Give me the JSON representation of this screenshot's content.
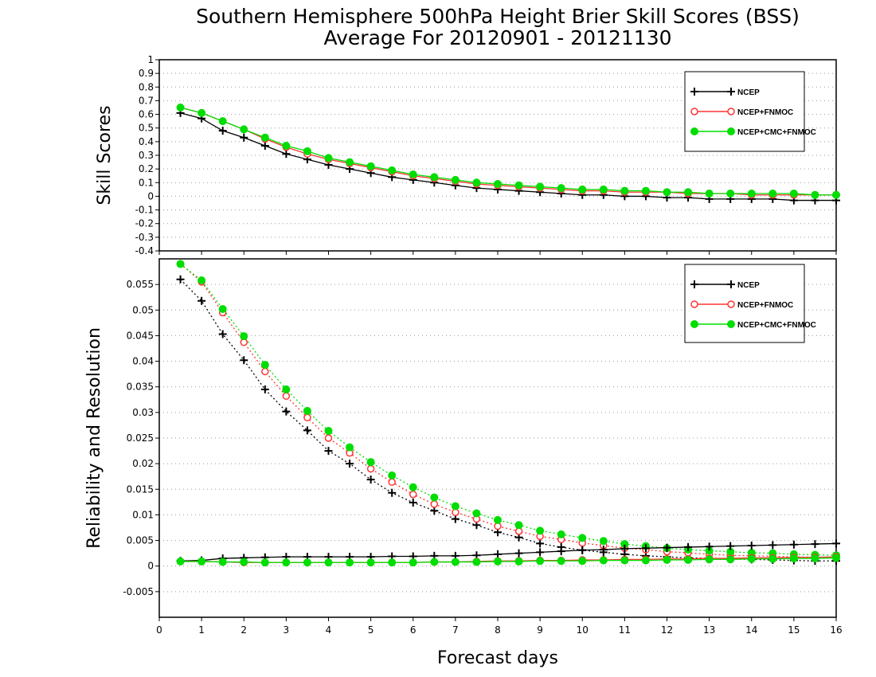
{
  "title_line1": "Southern Hemisphere 500hPa Height Brier Skill Scores (BSS)",
  "title_line2": "Average For 20120901 - 20121130",
  "xlabel": "Forecast days",
  "colors": {
    "NCEP": "#000000",
    "NCEP+FNMOC": "#ff3333",
    "NCEP+CMC+FNMOC": "#00dd00"
  },
  "chart_data": [
    {
      "type": "line",
      "ylabel": "Skill Scores",
      "xlim": [
        0,
        16
      ],
      "ylim": [
        -0.4,
        1
      ],
      "xticks": [
        "0",
        "1",
        "2",
        "3",
        "4",
        "5",
        "6",
        "7",
        "8",
        "9",
        "10",
        "11",
        "12",
        "13",
        "14",
        "15",
        "16"
      ],
      "yticks": [
        "-0.4",
        "-0.3",
        "-0.2",
        "-0.1",
        "0",
        "0.1",
        "0.2",
        "0.3",
        "0.4",
        "0.5",
        "0.6",
        "0.7",
        "0.8",
        "0.9",
        "1"
      ],
      "grid": true,
      "legend": "top-right",
      "x": [
        0.5,
        1,
        1.5,
        2,
        2.5,
        3,
        3.5,
        4,
        4.5,
        5,
        5.5,
        6,
        6.5,
        7,
        7.5,
        8,
        8.5,
        9,
        9.5,
        10,
        10.5,
        11,
        11.5,
        12,
        12.5,
        13,
        13.5,
        14,
        14.5,
        15,
        15.5,
        16
      ],
      "series": [
        {
          "name": "NCEP",
          "marker": "plus",
          "style": "solid",
          "values": [
            0.61,
            0.57,
            0.48,
            0.43,
            0.37,
            0.31,
            0.27,
            0.23,
            0.2,
            0.17,
            0.14,
            0.12,
            0.1,
            0.08,
            0.06,
            0.05,
            0.04,
            0.03,
            0.02,
            0.01,
            0.01,
            0.0,
            0.0,
            -0.01,
            -0.01,
            -0.02,
            -0.02,
            -0.02,
            -0.02,
            -0.03,
            -0.03,
            -0.03
          ]
        },
        {
          "name": "NCEP+FNMOC",
          "marker": "circle-open",
          "style": "solid",
          "values": [
            0.65,
            0.61,
            0.55,
            0.49,
            0.42,
            0.36,
            0.31,
            0.27,
            0.24,
            0.21,
            0.18,
            0.15,
            0.13,
            0.11,
            0.09,
            0.08,
            0.07,
            0.06,
            0.05,
            0.04,
            0.04,
            0.03,
            0.03,
            0.03,
            0.02,
            0.02,
            0.02,
            0.01,
            0.01,
            0.01,
            0.01,
            0.01
          ]
        },
        {
          "name": "NCEP+CMC+FNMOC",
          "marker": "circle-filled",
          "style": "solid",
          "values": [
            0.65,
            0.61,
            0.55,
            0.49,
            0.43,
            0.37,
            0.33,
            0.28,
            0.25,
            0.22,
            0.19,
            0.16,
            0.14,
            0.12,
            0.1,
            0.09,
            0.08,
            0.07,
            0.06,
            0.05,
            0.05,
            0.04,
            0.04,
            0.03,
            0.03,
            0.02,
            0.02,
            0.02,
            0.02,
            0.02,
            0.01,
            0.01
          ]
        }
      ]
    },
    {
      "type": "line",
      "ylabel": "Reliability and Resolution",
      "xlim": [
        0,
        16
      ],
      "ylim": [
        -0.01,
        0.06
      ],
      "xticks": [
        "0",
        "1",
        "2",
        "3",
        "4",
        "5",
        "6",
        "7",
        "8",
        "9",
        "10",
        "11",
        "12",
        "13",
        "14",
        "15",
        "16"
      ],
      "yticks": [
        "-0.005",
        "0",
        "0.005",
        "0.01",
        "0.015",
        "0.02",
        "0.025",
        "0.03",
        "0.035",
        "0.04",
        "0.045",
        "0.05",
        "0.055"
      ],
      "grid": true,
      "legend": "top-right",
      "x": [
        0.5,
        1,
        1.5,
        2,
        2.5,
        3,
        3.5,
        4,
        4.5,
        5,
        5.5,
        6,
        6.5,
        7,
        7.5,
        8,
        8.5,
        9,
        9.5,
        10,
        10.5,
        11,
        11.5,
        12,
        12.5,
        13,
        13.5,
        14,
        14.5,
        15,
        15.5,
        16
      ],
      "series": [
        {
          "name": "NCEP",
          "component": "resolution",
          "marker": "plus",
          "style": "dotted",
          "values": [
            0.056,
            0.0518,
            0.0453,
            0.0402,
            0.0345,
            0.0302,
            0.0265,
            0.0225,
            0.02,
            0.0169,
            0.0143,
            0.0124,
            0.0108,
            0.0092,
            0.008,
            0.0066,
            0.0056,
            0.0044,
            0.0037,
            0.0031,
            0.0027,
            0.0023,
            0.002,
            0.0018,
            0.0016,
            0.0015,
            0.0014,
            0.0013,
            0.0012,
            0.0011,
            0.001,
            0.001
          ]
        },
        {
          "name": "NCEP+FNMOC",
          "component": "resolution",
          "marker": "circle-open",
          "style": "dotted",
          "values": [
            0.059,
            0.0555,
            0.0495,
            0.0437,
            0.038,
            0.0332,
            0.029,
            0.025,
            0.0221,
            0.019,
            0.0164,
            0.014,
            0.0121,
            0.0105,
            0.0092,
            0.0078,
            0.0068,
            0.0058,
            0.0052,
            0.0045,
            0.004,
            0.0035,
            0.0032,
            0.0028,
            0.0026,
            0.0023,
            0.0021,
            0.002,
            0.0019,
            0.0018,
            0.0017,
            0.0017
          ]
        },
        {
          "name": "NCEP+CMC+FNMOC",
          "component": "resolution",
          "marker": "circle-filled",
          "style": "dotted",
          "values": [
            0.059,
            0.0558,
            0.0502,
            0.0449,
            0.0393,
            0.0345,
            0.0303,
            0.0264,
            0.0232,
            0.0203,
            0.0177,
            0.0154,
            0.0134,
            0.0117,
            0.0103,
            0.009,
            0.008,
            0.0069,
            0.0062,
            0.0055,
            0.0049,
            0.0043,
            0.0039,
            0.0035,
            0.0032,
            0.003,
            0.0028,
            0.0026,
            0.0025,
            0.0023,
            0.0022,
            0.0021
          ]
        },
        {
          "name": "NCEP",
          "component": "reliability",
          "marker": "plus",
          "style": "solid",
          "values": [
            0.001,
            0.0011,
            0.0015,
            0.0016,
            0.0017,
            0.0018,
            0.0018,
            0.0018,
            0.0018,
            0.0018,
            0.0019,
            0.0019,
            0.002,
            0.002,
            0.0021,
            0.0023,
            0.0025,
            0.0027,
            0.0029,
            0.0031,
            0.0032,
            0.0034,
            0.0035,
            0.0036,
            0.0037,
            0.0038,
            0.0039,
            0.004,
            0.0041,
            0.0042,
            0.0043,
            0.0044
          ]
        },
        {
          "name": "NCEP+FNMOC",
          "component": "reliability",
          "marker": "circle-open",
          "style": "solid",
          "values": [
            0.0009,
            0.0009,
            0.0008,
            0.0007,
            0.0007,
            0.0007,
            0.0007,
            0.0007,
            0.0007,
            0.0007,
            0.0007,
            0.0007,
            0.0008,
            0.0008,
            0.0009,
            0.001,
            0.001,
            0.0011,
            0.0011,
            0.0012,
            0.0012,
            0.0013,
            0.0013,
            0.0014,
            0.0014,
            0.0015,
            0.0015,
            0.0016,
            0.0016,
            0.0017,
            0.0017,
            0.0018
          ]
        },
        {
          "name": "NCEP+CMC+FNMOC",
          "component": "reliability",
          "marker": "circle-filled",
          "style": "solid",
          "values": [
            0.0009,
            0.0009,
            0.0008,
            0.0008,
            0.0007,
            0.0007,
            0.0007,
            0.0007,
            0.0007,
            0.0007,
            0.0007,
            0.0007,
            0.0008,
            0.0008,
            0.0008,
            0.0009,
            0.0009,
            0.001,
            0.001,
            0.001,
            0.0011,
            0.0011,
            0.0011,
            0.0012,
            0.0012,
            0.0013,
            0.0013,
            0.0014,
            0.0014,
            0.0015,
            0.0015,
            0.0016
          ]
        }
      ]
    }
  ]
}
